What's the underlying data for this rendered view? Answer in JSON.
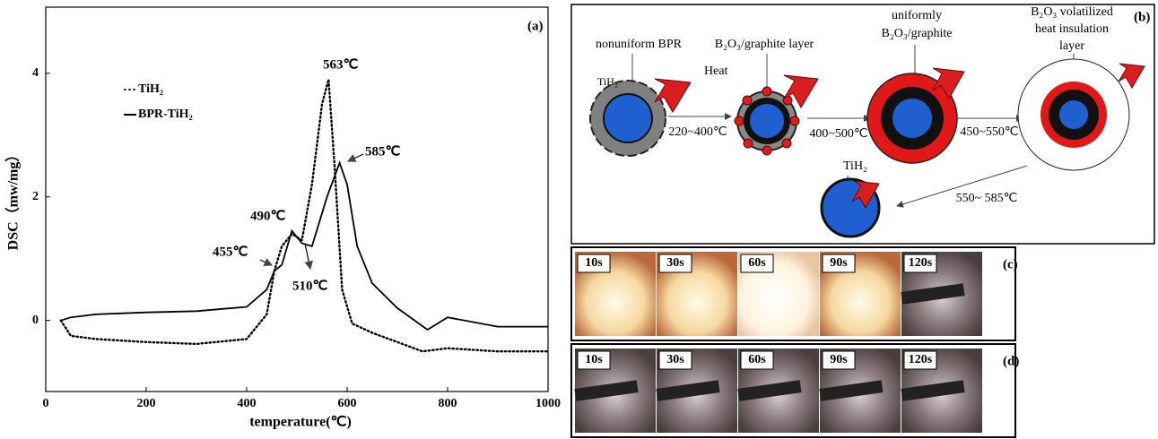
{
  "chart_data": {
    "type": "line",
    "panel": "(a)",
    "xlabel": "temperature(℃)",
    "ylabel": "DSC（mw/mg）",
    "xlim": [
      0,
      1000
    ],
    "xticks": [
      0,
      200,
      400,
      600,
      800,
      1000
    ],
    "ylim": [
      -1.15,
      5.07
    ],
    "yticks": [
      0,
      2,
      4
    ],
    "series": [
      {
        "name": "TiH₂",
        "style": "dotted",
        "color": "#000000",
        "x": [
          30,
          50,
          100,
          200,
          300,
          400,
          440,
          455,
          470,
          490,
          510,
          530,
          550,
          563,
          575,
          590,
          610,
          650,
          700,
          750,
          800,
          900,
          1000
        ],
        "values": [
          0,
          -0.25,
          -0.3,
          -0.35,
          -0.38,
          -0.3,
          0.1,
          0.8,
          1.2,
          1.4,
          1.3,
          2.2,
          3.5,
          3.9,
          2.5,
          0.5,
          -0.05,
          -0.2,
          -0.35,
          -0.5,
          -0.45,
          -0.5,
          -0.5
        ]
      },
      {
        "name": "BPR-TiH₂",
        "style": "solid",
        "color": "#000000",
        "x": [
          30,
          50,
          100,
          200,
          300,
          400,
          440,
          455,
          470,
          490,
          510,
          530,
          560,
          585,
          600,
          620,
          650,
          700,
          760,
          800,
          900,
          1000
        ],
        "values": [
          0,
          0.05,
          0.1,
          0.13,
          0.15,
          0.22,
          0.5,
          0.8,
          0.9,
          1.45,
          1.25,
          1.2,
          2.0,
          2.55,
          2.2,
          1.2,
          0.6,
          0.2,
          -0.15,
          0.05,
          -0.1,
          -0.1
        ]
      }
    ],
    "annotations": [
      "563℃",
      "585℃",
      "490℃",
      "455℃",
      "510℃"
    ]
  },
  "diagram": {
    "panel": "(b)",
    "stage1": [
      "nonuniform BPR",
      "Heat",
      "TiH₂"
    ],
    "step1": "220~400℃",
    "stage2": "B₂O₃/graphite layer",
    "step2": "400~500℃",
    "stage3": [
      "uniformly",
      "B₂O₃/graphite"
    ],
    "step3": "450~550℃",
    "stage4": [
      "B₂O₃ volatilized",
      "heat insulation",
      "layer"
    ],
    "step4": "550~ 585℃",
    "stage5": "TiH₂"
  },
  "photos_c": {
    "panel": "(c)",
    "labels": [
      "10s",
      "30s",
      "60s",
      "90s",
      "120s"
    ]
  },
  "photos_d": {
    "panel": "(d)",
    "labels": [
      "10s",
      "30s",
      "60s",
      "90s",
      "120s"
    ]
  }
}
